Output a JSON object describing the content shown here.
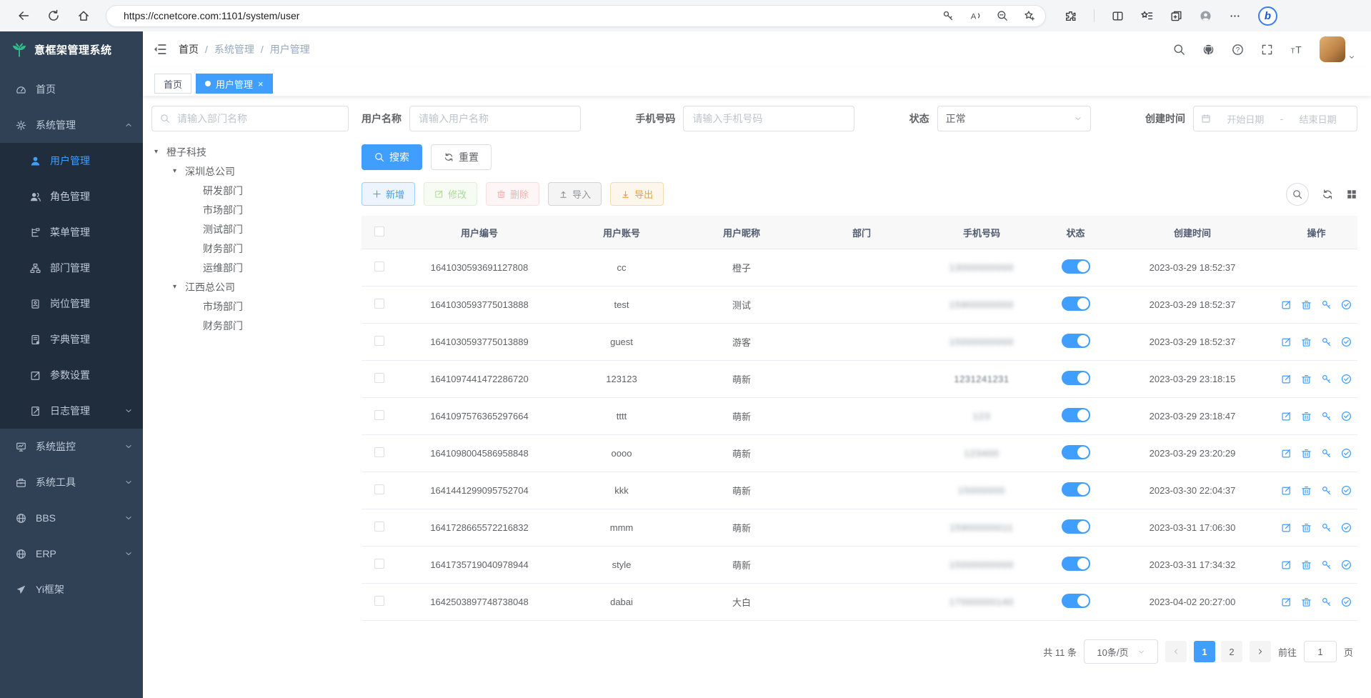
{
  "browser": {
    "url": "https://ccnetcore.com:1101/system/user",
    "left_icons": [
      "back",
      "reload",
      "home"
    ],
    "pill_icons": [
      "lock",
      "password-key",
      "read-aloud",
      "zoom-out",
      "add-favorite"
    ],
    "right_icons": [
      "extensions",
      "split-screen",
      "favorites",
      "collections",
      "profile",
      "settings-menu",
      "copilot"
    ],
    "copilot_glyph": "b"
  },
  "app": {
    "logo_title": "意框架管理系统",
    "breadcrumb": [
      "首页",
      "系统管理",
      "用户管理"
    ],
    "breadcrumb_separator": "/",
    "header_icons": [
      "search",
      "github",
      "help",
      "fullscreen",
      "font-size"
    ],
    "tabs": [
      {
        "label": "首页",
        "active": false
      },
      {
        "label": "用户管理",
        "active": true,
        "close_glyph": "×"
      }
    ]
  },
  "sidebar": {
    "sections": [
      {
        "key": "home",
        "label": "首页",
        "icon": "dashboard"
      },
      {
        "key": "system",
        "label": "系统管理",
        "icon": "gear",
        "caret": "up",
        "children": [
          {
            "key": "user",
            "label": "用户管理",
            "icon": "user",
            "active": true
          },
          {
            "key": "role",
            "label": "角色管理",
            "icon": "users"
          },
          {
            "key": "menu",
            "label": "菜单管理",
            "icon": "menu"
          },
          {
            "key": "dept",
            "label": "部门管理",
            "icon": "org"
          },
          {
            "key": "post",
            "label": "岗位管理",
            "icon": "badge"
          },
          {
            "key": "dict",
            "label": "字典管理",
            "icon": "book"
          },
          {
            "key": "config",
            "label": "参数设置",
            "icon": "editsq"
          },
          {
            "key": "log",
            "label": "日志管理",
            "icon": "log",
            "caret": "down"
          }
        ]
      },
      {
        "key": "monitor",
        "label": "系统监控",
        "icon": "monitor",
        "caret": "down"
      },
      {
        "key": "tool",
        "label": "系统工具",
        "icon": "toolbox",
        "caret": "down"
      },
      {
        "key": "bbs",
        "label": "BBS",
        "icon": "globe",
        "caret": "down"
      },
      {
        "key": "erp",
        "label": "ERP",
        "icon": "globe",
        "caret": "down"
      },
      {
        "key": "yi",
        "label": "Yi框架",
        "icon": "send"
      }
    ]
  },
  "tree": {
    "search_placeholder": "请输入部门名称",
    "nodes": [
      {
        "label": "橙子科技",
        "level": 0,
        "expandable": true
      },
      {
        "label": "深圳总公司",
        "level": 1,
        "expandable": true
      },
      {
        "label": "研发部门",
        "level": 2
      },
      {
        "label": "市场部门",
        "level": 2
      },
      {
        "label": "测试部门",
        "level": 2
      },
      {
        "label": "财务部门",
        "level": 2
      },
      {
        "label": "运维部门",
        "level": 2
      },
      {
        "label": "江西总公司",
        "level": 1,
        "expandable": true
      },
      {
        "label": "市场部门",
        "level": 2
      },
      {
        "label": "财务部门",
        "level": 2
      }
    ]
  },
  "filters": {
    "username_label": "用户名称",
    "username_placeholder": "请输入用户名称",
    "phone_label": "手机号码",
    "phone_placeholder": "请输入手机号码",
    "status_label": "状态",
    "status_value": "正常",
    "created_label": "创建时间",
    "date_start_placeholder": "开始日期",
    "date_separator": "-",
    "date_end_placeholder": "结束日期",
    "search_button": "搜索",
    "reset_button": "重置"
  },
  "toolbar": {
    "buttons": [
      {
        "key": "add",
        "label": "新增",
        "type": "primary",
        "icon": "plus",
        "disabled": false
      },
      {
        "key": "edit",
        "label": "修改",
        "type": "success",
        "icon": "edit",
        "disabled": true
      },
      {
        "key": "delete",
        "label": "删除",
        "type": "danger",
        "icon": "trash",
        "disabled": true
      },
      {
        "key": "import",
        "label": "导入",
        "type": "info",
        "icon": "upload",
        "disabled": false
      },
      {
        "key": "export",
        "label": "导出",
        "type": "warning",
        "icon": "download",
        "disabled": false
      }
    ],
    "right_icons": [
      "search",
      "refresh",
      "grid"
    ]
  },
  "table": {
    "columns": [
      "用户编号",
      "用户账号",
      "用户昵称",
      "部门",
      "手机号码",
      "状态",
      "创建时间",
      "操作"
    ],
    "action_icons": [
      "edit",
      "delete",
      "key",
      "check"
    ],
    "rows": [
      {
        "id": "1641030593691127808",
        "account": "cc",
        "nickname": "橙子",
        "dept": "",
        "phone": "13000000000",
        "status": true,
        "created": "2023-03-29 18:52:37",
        "actions": false
      },
      {
        "id": "1641030593775013888",
        "account": "test",
        "nickname": "测试",
        "dept": "",
        "phone": "15900000000",
        "status": true,
        "created": "2023-03-29 18:52:37",
        "actions": true
      },
      {
        "id": "1641030593775013889",
        "account": "guest",
        "nickname": "游客",
        "dept": "",
        "phone": "15000000000",
        "status": true,
        "created": "2023-03-29 18:52:37",
        "actions": true
      },
      {
        "id": "1641097441472286720",
        "account": "123123",
        "nickname": "萌新",
        "dept": "",
        "phone": "1231241231",
        "status": true,
        "created": "2023-03-29 23:18:15",
        "actions": true,
        "phone_light": true
      },
      {
        "id": "1641097576365297664",
        "account": "tttt",
        "nickname": "萌新",
        "dept": "",
        "phone": "123",
        "status": true,
        "created": "2023-03-29 23:18:47",
        "actions": true
      },
      {
        "id": "1641098004586958848",
        "account": "oooo",
        "nickname": "萌新",
        "dept": "",
        "phone": "123400",
        "status": true,
        "created": "2023-03-29 23:20:29",
        "actions": true
      },
      {
        "id": "1641441299095752704",
        "account": "kkk",
        "nickname": "萌新",
        "dept": "",
        "phone": "15000000",
        "status": true,
        "created": "2023-03-30 22:04:37",
        "actions": true
      },
      {
        "id": "1641728665572216832",
        "account": "mmm",
        "nickname": "萌新",
        "dept": "",
        "phone": "15900000011",
        "status": true,
        "created": "2023-03-31 17:06:30",
        "actions": true
      },
      {
        "id": "1641735719040978944",
        "account": "style",
        "nickname": "萌新",
        "dept": "",
        "phone": "15000000000",
        "status": true,
        "created": "2023-03-31 17:34:32",
        "actions": true
      },
      {
        "id": "1642503897748738048",
        "account": "dabai",
        "nickname": "大白",
        "dept": "",
        "phone": "17000000140",
        "status": true,
        "created": "2023-04-02 20:27:00",
        "actions": true
      }
    ]
  },
  "pagination": {
    "total_text": "共 11 条",
    "page_size": "10条/页",
    "pages": [
      "1",
      "2"
    ],
    "active_page": "1",
    "goto_label": "前往",
    "goto_value": "1",
    "unit_label": "页"
  },
  "colors": {
    "primary": "#409eff",
    "sidebar_bg": "#304156",
    "submenu_bg": "#1f2d3d",
    "success": "#67c23a",
    "danger": "#f56c6c",
    "warning": "#e6a23c",
    "info": "#909399",
    "logo_green": "#2ebd8d"
  }
}
